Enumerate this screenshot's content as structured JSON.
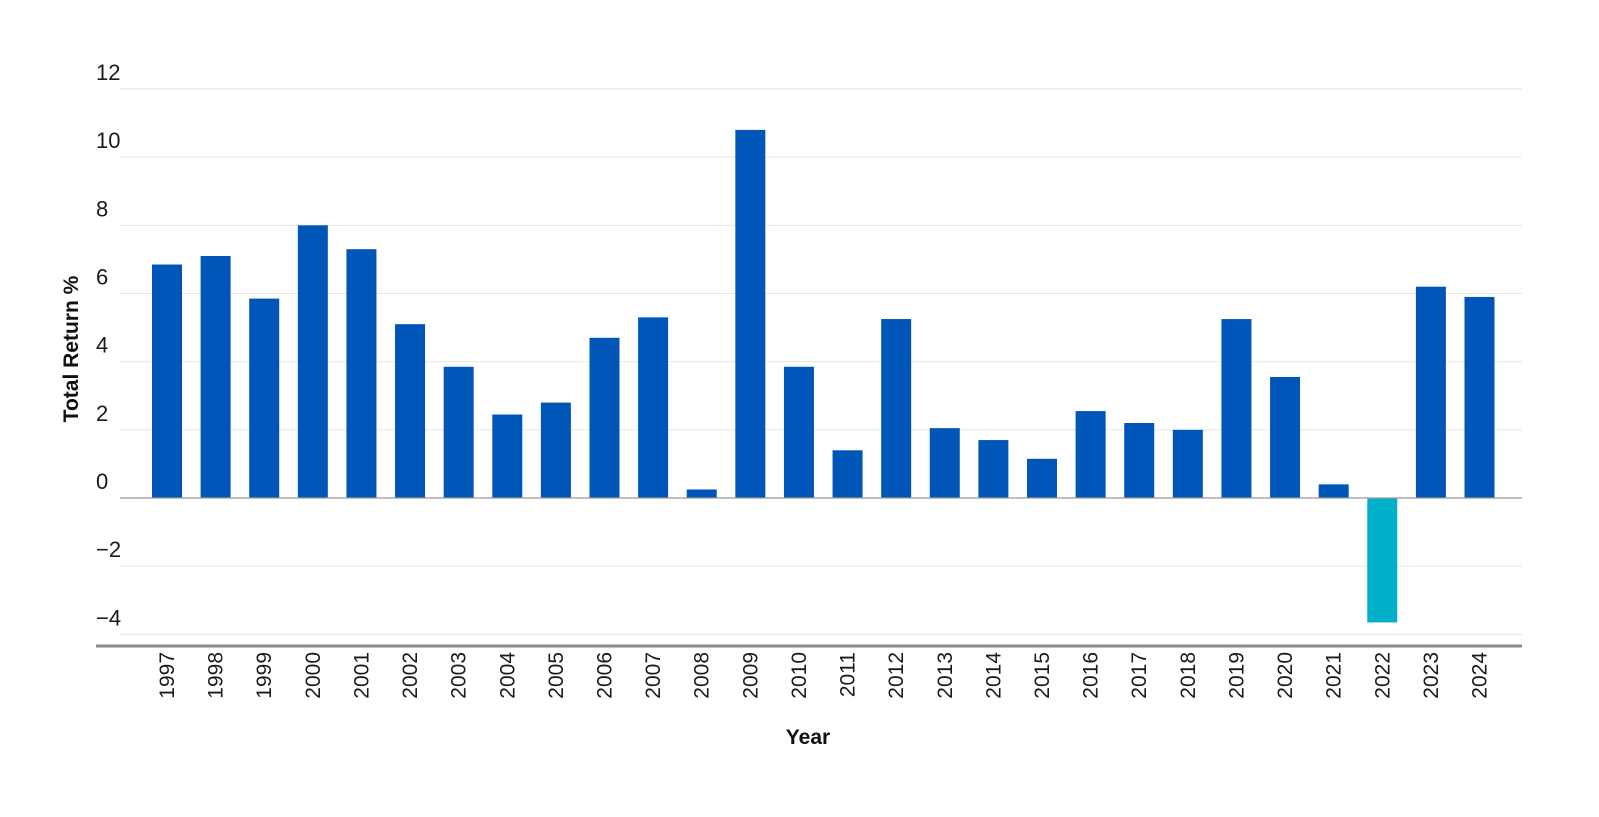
{
  "chart_data": {
    "type": "bar",
    "xlabel": "Year",
    "ylabel": "Total Return %",
    "ylim": [
      -4.4,
      12
    ],
    "yticks": [
      12,
      10,
      8,
      6,
      4,
      2,
      0,
      -2,
      -4
    ],
    "ytick_labels": [
      "12",
      "10",
      "8",
      "6",
      "4",
      "2",
      "0",
      "−2",
      "−4"
    ],
    "grid": true,
    "legend": "none",
    "colors": {
      "positive": "#0056b8",
      "negative": "#00b0c8"
    },
    "categories": [
      "1997",
      "1998",
      "1999",
      "2000",
      "2001",
      "2002",
      "2003",
      "2004",
      "2005",
      "2006",
      "2007",
      "2008",
      "2009",
      "2010",
      "2011",
      "2012",
      "2013",
      "2014",
      "2015",
      "2016",
      "2017",
      "2018",
      "2019",
      "2020",
      "2021",
      "2022",
      "2023",
      "2024"
    ],
    "values": [
      6.85,
      7.1,
      5.85,
      8.0,
      7.3,
      5.1,
      3.85,
      2.45,
      2.8,
      4.7,
      5.3,
      0.25,
      10.8,
      3.85,
      1.4,
      5.25,
      2.05,
      1.7,
      1.15,
      2.55,
      2.2,
      2.0,
      5.25,
      3.55,
      0.4,
      -3.65,
      6.2,
      5.9
    ]
  }
}
